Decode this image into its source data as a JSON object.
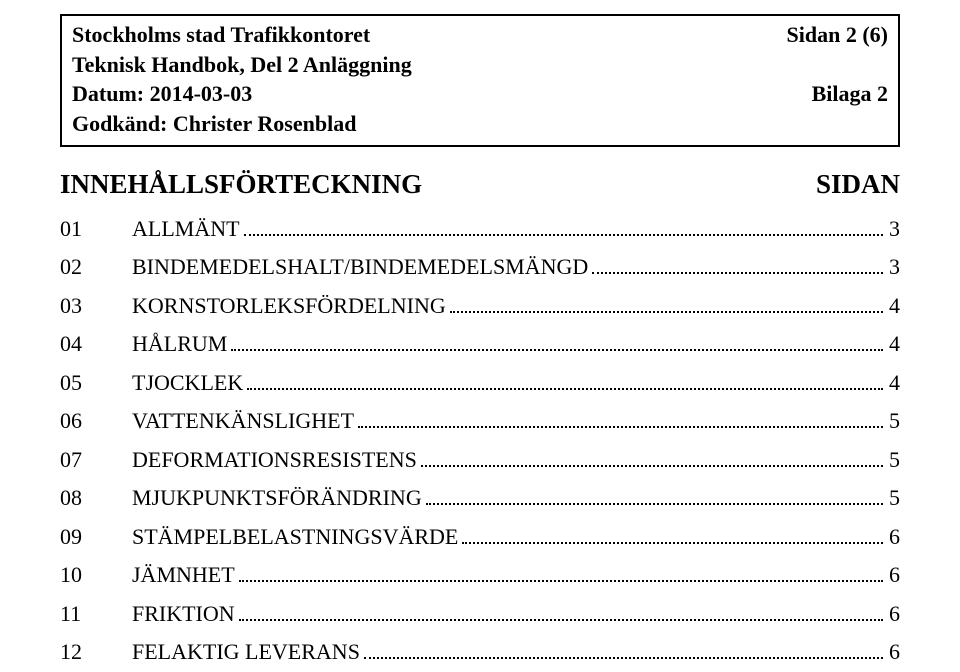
{
  "header": {
    "org": "Stockholms stad Trafikkontoret",
    "pageinfo": "Sidan 2 (6)",
    "line2": "Teknisk Handbok, Del 2 Anläggning",
    "line3_left": "Datum: 2014-03-03",
    "line3_right": "Bilaga 2",
    "line4": "Godkänd: Christer Rosenblad"
  },
  "toc": {
    "title": "INNEHÅLLSFÖRTECKNING",
    "sidan": "SIDAN",
    "entries": [
      {
        "num": "01",
        "text": "ALLMÄNT",
        "page": "3"
      },
      {
        "num": "02",
        "text": "BINDEMEDELSHALT/BINDEMEDELSMÄNGD",
        "page": "3"
      },
      {
        "num": "03",
        "text": "KORNSTORLEKSFÖRDELNING",
        "page": "4"
      },
      {
        "num": "04",
        "text": "HÅLRUM",
        "page": "4"
      },
      {
        "num": "05",
        "text": "TJOCKLEK",
        "page": "4"
      },
      {
        "num": "06",
        "text": "VATTENKÄNSLIGHET",
        "page": "5"
      },
      {
        "num": "07",
        "text": "DEFORMATIONSRESISTENS",
        "page": "5"
      },
      {
        "num": "08",
        "text": "MJUKPUNKTSFÖRÄNDRING",
        "page": "5"
      },
      {
        "num": "09",
        "text": "STÄMPELBELASTNINGSVÄRDE",
        "page": "6"
      },
      {
        "num": "10",
        "text": "JÄMNHET",
        "page": "6"
      },
      {
        "num": "11",
        "text": "FRIKTION",
        "page": "6"
      },
      {
        "num": "12",
        "text": "FELAKTIG LEVERANS",
        "page": "6"
      }
    ]
  }
}
